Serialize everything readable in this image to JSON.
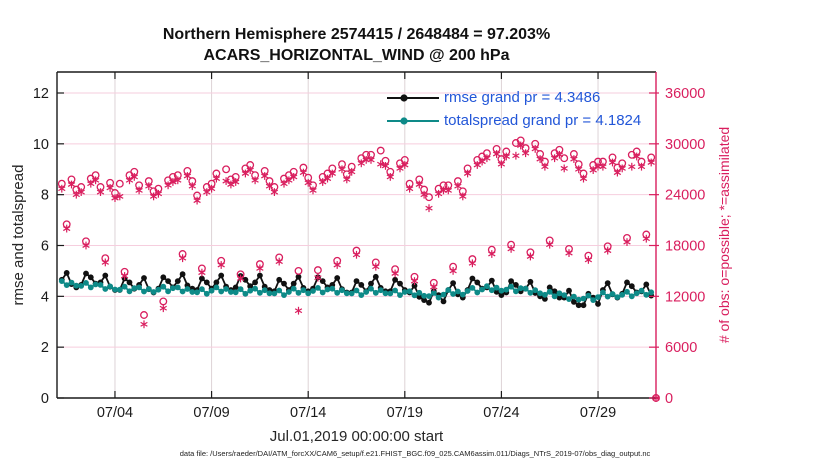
{
  "title": {
    "line1": "Northern Hemisphere 2574415 / 2648484 = 97.203%",
    "line2": "ACARS_HORIZONTAL_WIND @ 200 hPa"
  },
  "axes": {
    "left": {
      "label": "rmse and totalspread",
      "ticks": [
        0,
        2,
        4,
        6,
        8,
        10,
        12
      ],
      "ylim": [
        0,
        12.83
      ]
    },
    "right": {
      "label": "# of obs: o=possible; *=assimilated",
      "ticks": [
        0,
        6000,
        12000,
        18000,
        24000,
        30000,
        36000
      ],
      "ylim": [
        0,
        38500
      ]
    },
    "x": {
      "label": "Jul.01,2019 00:00:00 start",
      "ticks": [
        "07/04",
        "07/09",
        "07/14",
        "07/19",
        "07/24",
        "07/29"
      ],
      "tick_days": [
        3,
        8,
        13,
        18,
        23,
        28
      ],
      "range_days": [
        0,
        31
      ]
    }
  },
  "legend": [
    {
      "label": "rmse grand pr = 4.3486",
      "series": "rmse"
    },
    {
      "label": "totalspread grand pr = 4.1824",
      "series": "totalspread"
    }
  ],
  "footer": "data file: /Users/raeder/DAI/ATM_forcXX/CAM6_setup/f.e21.FHIST_BGC.f09_025.CAM6assim.011/Diags_NTrS_2019-07/obs_diag_output.nc",
  "chart_data": {
    "type": "line",
    "subtype": "timeseries with scatter counts, 6-hourly bins",
    "grid": true,
    "legend_position": "top-center",
    "x_unit": "days after Jul 1 2019 00:00 UTC",
    "x_range_days": [
      0,
      31
    ],
    "left_ylim": [
      0,
      12.83
    ],
    "right_ylim": [
      0,
      38500
    ],
    "colors": {
      "rmse": "#111111",
      "totalspread": "#0e8a88",
      "obs": "#d91e5e",
      "legend_text": "#2256d8",
      "grid_h": "#f6cede",
      "grid_v": "#ddd3d6",
      "axis": "#1a1a1a"
    },
    "x_days": [
      0.25,
      0.5,
      0.75,
      1,
      1.25,
      1.5,
      1.75,
      2,
      2.25,
      2.5,
      2.75,
      3,
      3.25,
      3.5,
      3.75,
      4,
      4.25,
      4.5,
      4.75,
      5,
      5.25,
      5.5,
      5.75,
      6,
      6.25,
      6.5,
      6.75,
      7,
      7.25,
      7.5,
      7.75,
      8,
      8.25,
      8.5,
      8.75,
      9,
      9.25,
      9.5,
      9.75,
      10,
      10.25,
      10.5,
      10.75,
      11,
      11.25,
      11.5,
      11.75,
      12,
      12.25,
      12.5,
      12.75,
      13,
      13.25,
      13.5,
      13.75,
      14,
      14.25,
      14.5,
      14.75,
      15,
      15.25,
      15.5,
      15.75,
      16,
      16.25,
      16.5,
      16.75,
      17,
      17.25,
      17.5,
      17.75,
      18,
      18.25,
      18.5,
      18.75,
      19,
      19.25,
      19.5,
      19.75,
      20,
      20.25,
      20.5,
      20.75,
      21,
      21.25,
      21.5,
      21.75,
      22,
      22.25,
      22.5,
      22.75,
      23,
      23.25,
      23.5,
      23.75,
      24,
      24.25,
      24.5,
      24.75,
      25,
      25.25,
      25.5,
      25.75,
      26,
      26.25,
      26.5,
      26.75,
      27,
      27.25,
      27.5,
      27.75,
      28,
      28.25,
      28.5,
      28.75,
      29,
      29.25,
      29.5,
      29.75,
      30,
      30.25,
      30.5,
      30.75,
      31
    ],
    "series": [
      {
        "name": "rmse",
        "axis": "left",
        "marker": "filled-circle",
        "grand_mean": 4.3486,
        "values": [
          4.65,
          4.92,
          4.48,
          4.35,
          4.45,
          4.9,
          4.75,
          4.5,
          4.55,
          4.82,
          4.38,
          4.25,
          4.25,
          4.7,
          4.55,
          4.3,
          4.45,
          4.72,
          4.28,
          4.15,
          4.3,
          4.75,
          4.6,
          4.35,
          4.6,
          4.87,
          4.43,
          4.3,
          4.25,
          4.7,
          4.55,
          4.3,
          4.55,
          4.82,
          4.38,
          4.25,
          4.35,
          4.8,
          4.65,
          4.4,
          4.55,
          4.82,
          4.38,
          4.25,
          4.2,
          4.65,
          4.5,
          4.25,
          4.5,
          4.77,
          4.33,
          4.2,
          4.3,
          4.75,
          4.6,
          4.35,
          4.45,
          4.72,
          4.28,
          4.15,
          4.15,
          4.6,
          4.45,
          4.2,
          4.5,
          4.77,
          4.33,
          4.2,
          4.2,
          4.65,
          4.5,
          4.25,
          4.15,
          4.42,
          3.98,
          3.85,
          3.75,
          4.2,
          4.05,
          3.8,
          4.25,
          4.52,
          4.08,
          3.95,
          4.25,
          4.7,
          4.55,
          4.3,
          4.35,
          4.62,
          4.18,
          4.05,
          4.15,
          4.6,
          4.45,
          4.2,
          4.3,
          4.57,
          4.13,
          4.0,
          3.9,
          4.35,
          4.2,
          3.95,
          3.95,
          4.22,
          3.78,
          3.65,
          3.65,
          4.1,
          3.95,
          3.7,
          4.25,
          4.52,
          4.08,
          3.95,
          4.1,
          4.55,
          4.4,
          4.15,
          4.2,
          4.47,
          4.03,
          null
        ]
      },
      {
        "name": "totalspread",
        "axis": "left",
        "marker": "filled-circle",
        "grand_mean": 4.1824,
        "values": [
          4.6,
          4.44,
          4.54,
          4.42,
          4.41,
          4.53,
          4.35,
          4.47,
          4.45,
          4.29,
          4.39,
          4.27,
          4.26,
          4.38,
          4.2,
          4.32,
          4.35,
          4.19,
          4.29,
          4.17,
          4.26,
          4.38,
          4.2,
          4.32,
          4.35,
          4.19,
          4.29,
          4.17,
          4.16,
          4.28,
          4.1,
          4.22,
          4.35,
          4.19,
          4.29,
          4.17,
          4.16,
          4.28,
          4.1,
          4.22,
          4.3,
          4.14,
          4.24,
          4.12,
          4.11,
          4.23,
          4.05,
          4.17,
          4.3,
          4.14,
          4.24,
          4.12,
          4.21,
          4.33,
          4.15,
          4.27,
          4.3,
          4.14,
          4.24,
          4.12,
          4.11,
          4.23,
          4.05,
          4.17,
          4.3,
          4.14,
          4.24,
          4.12,
          4.11,
          4.23,
          4.05,
          4.17,
          4.2,
          4.04,
          4.14,
          4.02,
          4.01,
          4.13,
          3.95,
          4.07,
          4.25,
          4.09,
          4.19,
          4.07,
          4.21,
          4.33,
          4.15,
          4.27,
          4.4,
          4.24,
          4.34,
          4.22,
          4.26,
          4.38,
          4.2,
          4.32,
          4.3,
          4.14,
          4.24,
          4.12,
          4.06,
          4.18,
          4.0,
          4.12,
          4.05,
          3.89,
          3.99,
          3.87,
          3.91,
          4.03,
          3.85,
          3.97,
          4.15,
          3.99,
          4.09,
          3.97,
          4.06,
          4.18,
          4.0,
          4.12,
          4.22,
          4.06,
          4.16,
          null
        ]
      },
      {
        "name": "possible",
        "axis": "right",
        "marker": "open-circle",
        "values": [
          25300,
          20500,
          25800,
          24600,
          24900,
          18500,
          25900,
          26300,
          24900,
          16500,
          25400,
          24200,
          25300,
          14900,
          26300,
          26700,
          25100,
          9800,
          25600,
          24400,
          24700,
          11400,
          25700,
          26100,
          26300,
          17000,
          26800,
          25600,
          23900,
          15300,
          24900,
          25300,
          26500,
          16200,
          27000,
          25800,
          26100,
          14600,
          27100,
          27500,
          26300,
          15800,
          26800,
          25600,
          24900,
          16600,
          25900,
          26300,
          26700,
          15000,
          27200,
          26000,
          25100,
          15100,
          26100,
          26500,
          27100,
          16200,
          27600,
          26400,
          27300,
          17400,
          28300,
          28700,
          28700,
          16000,
          29200,
          28000,
          26700,
          15200,
          27700,
          28100,
          25300,
          14300,
          25800,
          24600,
          23700,
          13600,
          24700,
          25100,
          25100,
          15500,
          25600,
          24400,
          27100,
          16400,
          28100,
          28500,
          28900,
          17500,
          29400,
          28200,
          29100,
          18100,
          30100,
          30400,
          29500,
          17200,
          30000,
          28800,
          27900,
          18600,
          28900,
          29300,
          28300,
          17600,
          28800,
          27600,
          26500,
          16800,
          27500,
          27900,
          27900,
          17900,
          28400,
          27200,
          27700,
          18900,
          28700,
          29100,
          27900,
          19300,
          28400,
          0
        ]
      },
      {
        "name": "assimilated",
        "axis": "right",
        "marker": "asterisk",
        "values": [
          24700,
          20000,
          25200,
          24000,
          24300,
          18000,
          25300,
          25700,
          24300,
          16000,
          24800,
          23600,
          23800,
          14400,
          25700,
          26100,
          24500,
          8700,
          25000,
          23800,
          24100,
          10600,
          25100,
          25500,
          25700,
          16500,
          26200,
          25000,
          23300,
          14800,
          24300,
          24700,
          25900,
          15700,
          25600,
          25200,
          25500,
          14100,
          26500,
          26900,
          25700,
          15300,
          26200,
          25000,
          24300,
          16100,
          25300,
          25700,
          26100,
          10300,
          26600,
          25400,
          24500,
          14200,
          25500,
          25900,
          26500,
          15700,
          27000,
          25800,
          26700,
          16900,
          27700,
          28100,
          28100,
          15500,
          27600,
          27400,
          26100,
          14700,
          27100,
          27500,
          24700,
          13800,
          25200,
          24000,
          22400,
          13100,
          24100,
          24500,
          24500,
          15000,
          25000,
          23800,
          26500,
          15900,
          27500,
          27900,
          28300,
          17000,
          28800,
          27600,
          28500,
          17600,
          28600,
          29800,
          28900,
          16700,
          29400,
          28200,
          27300,
          18100,
          28300,
          28700,
          27100,
          17100,
          28200,
          27000,
          25900,
          16300,
          26900,
          27300,
          27300,
          17400,
          27800,
          26600,
          27100,
          18400,
          27300,
          28500,
          27300,
          18800,
          27800,
          0
        ]
      }
    ]
  }
}
